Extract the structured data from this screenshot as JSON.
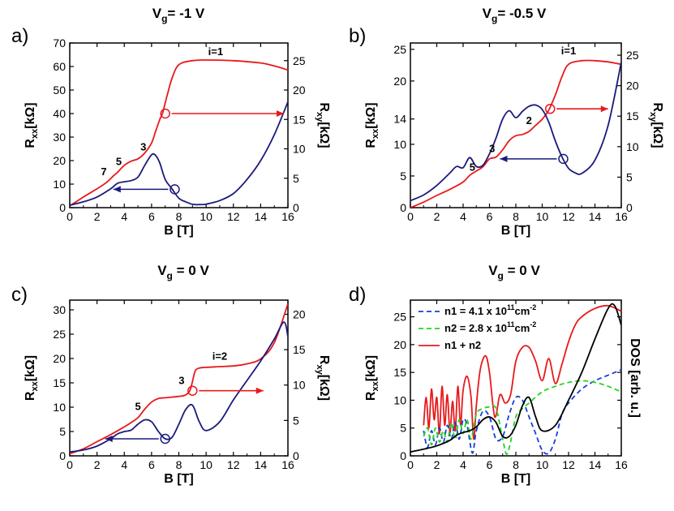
{
  "chart_data": [
    {
      "id": "a",
      "type": "line",
      "panel_label": "a)",
      "title_main": "V",
      "title_sub": "g",
      "title_rest": "= -1 V",
      "xlabel": "B [T]",
      "ylabel_left_main": "R",
      "ylabel_left_sub": "xx",
      "ylabel_left_unit": "[kΩ]",
      "ylabel_right_main": "R",
      "ylabel_right_sub": "xy",
      "ylabel_right_unit": "[kΩ]",
      "xlim": [
        0,
        16
      ],
      "ylim_left": [
        0,
        70
      ],
      "ylim_right": [
        0,
        28
      ],
      "xticks": [
        0,
        2,
        4,
        6,
        8,
        10,
        12,
        14,
        16
      ],
      "yticks_left": [
        0,
        10,
        20,
        30,
        40,
        50,
        60,
        70
      ],
      "yticks_right": [
        0,
        5,
        10,
        15,
        20,
        25
      ],
      "series": [
        {
          "axis": "right",
          "color": "#e8191b",
          "x": [
            0,
            1,
            2,
            2.7,
            3.2,
            3.5,
            4,
            4.5,
            5,
            5.5,
            6,
            6.3,
            6.6,
            6.8,
            7,
            7.2,
            7.5,
            8,
            9,
            10,
            12,
            14,
            15,
            16
          ],
          "y": [
            0.3,
            1.8,
            3.2,
            4.3,
            5.4,
            6.0,
            7.2,
            7.9,
            8.3,
            9.3,
            11,
            13,
            15,
            16,
            17.8,
            19.6,
            22,
            24.3,
            25.0,
            25.1,
            25.0,
            24.6,
            24.1,
            23.4
          ]
        },
        {
          "axis": "left",
          "color": "#1a1a7c",
          "x": [
            0,
            1,
            2,
            3,
            3.5,
            4,
            4.5,
            5,
            5.5,
            6,
            6.3,
            6.6,
            7,
            7.5,
            8,
            8.5,
            9,
            9.5,
            10,
            11,
            12,
            13,
            14,
            15,
            16
          ],
          "y": [
            1,
            2.5,
            4.5,
            8,
            10.3,
            11,
            11.5,
            13,
            18,
            22.5,
            22.2,
            19,
            12,
            8,
            4,
            2.5,
            1.4,
            1.3,
            1.5,
            3,
            6,
            12,
            20,
            31,
            45
          ]
        }
      ],
      "annotations": [
        {
          "text": "i=1",
          "x": 10.7,
          "y": 25.4,
          "axis": "right"
        },
        {
          "text": "3",
          "x": 5.4,
          "y": 9.2,
          "axis": "right"
        },
        {
          "text": "5",
          "x": 3.6,
          "y": 6.7,
          "axis": "right"
        },
        {
          "text": "7",
          "x": 2.5,
          "y": 5.0,
          "axis": "right"
        }
      ],
      "markers": [
        {
          "x": 7.0,
          "y": 16.0,
          "axis": "right",
          "color": "#e8191b",
          "dir": "right",
          "x2": 15.7
        },
        {
          "x": 7.7,
          "y": 7.8,
          "axis": "left",
          "color": "#1a1a7c",
          "dir": "left",
          "x2": 3.2
        }
      ]
    },
    {
      "id": "b",
      "type": "line",
      "panel_label": "b)",
      "title_main": "V",
      "title_sub": "g",
      "title_rest": "= -0.5 V",
      "xlabel": "B [T]",
      "ylabel_left_main": "R",
      "ylabel_left_sub": "xx",
      "ylabel_left_unit": "[kΩ]",
      "ylabel_right_main": "R",
      "ylabel_right_sub": "xy",
      "ylabel_right_unit": "[kΩ]",
      "xlim": [
        0,
        16
      ],
      "ylim_left": [
        0,
        26
      ],
      "ylim_right": [
        0,
        27
      ],
      "xticks": [
        0,
        2,
        4,
        6,
        8,
        10,
        12,
        14,
        16
      ],
      "yticks_left": [
        0,
        5,
        10,
        14,
        20,
        25
      ],
      "yticks_right": [
        0,
        5,
        10,
        15,
        20,
        25
      ],
      "series": [
        {
          "axis": "right",
          "color": "#e8191b",
          "x": [
            0,
            1,
            2,
            3,
            4,
            4.5,
            5,
            5.5,
            6,
            6.5,
            7,
            7.5,
            8,
            8.5,
            9,
            9.5,
            10,
            10.5,
            11,
            11.5,
            12,
            13,
            14,
            15,
            16
          ],
          "y": [
            0,
            0.9,
            2.0,
            3.0,
            4.2,
            5.3,
            6.0,
            6.7,
            8.0,
            8.3,
            9.5,
            11.0,
            11.8,
            12.0,
            12.5,
            13.5,
            14.5,
            16.0,
            18.5,
            21.5,
            23.5,
            24.1,
            24.1,
            23.9,
            23.5
          ]
        },
        {
          "axis": "left",
          "color": "#1a1a7c",
          "x": [
            0,
            1,
            2,
            3,
            3.5,
            4,
            4.5,
            5,
            5.5,
            6,
            6.5,
            7,
            7.5,
            8,
            8.5,
            9,
            9.5,
            10,
            10.5,
            11,
            11.5,
            12,
            12.5,
            13,
            14,
            15,
            16
          ],
          "y": [
            1.1,
            2.0,
            3.5,
            5.5,
            6.5,
            6.3,
            7.9,
            6.5,
            6.7,
            8.5,
            11,
            14,
            15.3,
            14.2,
            15.2,
            16.0,
            16.2,
            15.5,
            13.5,
            10.5,
            8.0,
            6.2,
            5.5,
            5.4,
            7.5,
            13,
            23
          ]
        }
      ],
      "annotations": [
        {
          "text": "i=1",
          "x": 12.0,
          "y": 24.6,
          "axis": "right"
        },
        {
          "text": "2",
          "x": 9.0,
          "y": 13.2,
          "axis": "right"
        },
        {
          "text": "3",
          "x": 6.2,
          "y": 8.6,
          "axis": "right"
        },
        {
          "text": "5",
          "x": 4.7,
          "y": 5.5,
          "axis": "right"
        }
      ],
      "markers": [
        {
          "x": 10.6,
          "y": 16.2,
          "axis": "right",
          "color": "#e8191b",
          "dir": "right",
          "x2": 15.0
        },
        {
          "x": 11.6,
          "y": 7.7,
          "axis": "left",
          "color": "#1a1a7c",
          "dir": "left",
          "x2": 6.8
        }
      ]
    },
    {
      "id": "c",
      "type": "line",
      "panel_label": "c)",
      "title_main": "V",
      "title_sub": "g",
      "title_rest": " = 0 V",
      "xlabel": "B [T]",
      "ylabel_left_main": "R",
      "ylabel_left_sub": "xx",
      "ylabel_left_unit": "[kΩ]",
      "ylabel_right_main": "R",
      "ylabel_right_sub": "xy",
      "ylabel_right_unit": "[kΩ]",
      "xlim": [
        0,
        16
      ],
      "ylim_left": [
        0,
        32
      ],
      "ylim_right": [
        0,
        22
      ],
      "xticks": [
        0,
        2,
        4,
        6,
        8,
        10,
        12,
        14,
        16
      ],
      "yticks_left": [
        0,
        5,
        10,
        15,
        20,
        25,
        30
      ],
      "yticks_right": [
        0,
        5,
        10,
        15,
        20
      ],
      "series": [
        {
          "axis": "right",
          "color": "#e8191b",
          "x": [
            0,
            1,
            2,
            3,
            4,
            4.5,
            5,
            5.5,
            6,
            6.5,
            7,
            7.5,
            8,
            8.5,
            8.8,
            9,
            9.2,
            9.5,
            10,
            11,
            12,
            13,
            14,
            15,
            16
          ],
          "y": [
            0.3,
            1.0,
            2.0,
            3.0,
            4.1,
            4.7,
            5.4,
            6.6,
            7.6,
            8.1,
            8.2,
            8.3,
            8.4,
            8.6,
            9.2,
            10.5,
            12,
            12.4,
            12.5,
            12.6,
            12.7,
            13.0,
            13.7,
            16.0,
            21.5
          ]
        },
        {
          "axis": "left",
          "color": "#1a1a7c",
          "x": [
            0,
            1,
            2,
            3,
            3.5,
            4,
            4.5,
            5,
            5.5,
            6,
            6.5,
            7,
            7.5,
            8,
            8.5,
            9,
            9.5,
            10,
            11,
            12,
            13,
            14,
            15,
            15.7,
            16
          ],
          "y": [
            0.8,
            1.2,
            2.0,
            3.5,
            4.5,
            5.0,
            5.3,
            6.5,
            7.4,
            7.0,
            5.0,
            3.5,
            3.8,
            6.5,
            9.5,
            10.4,
            7.0,
            5.2,
            7.0,
            11.5,
            15.5,
            19.5,
            24,
            27.5,
            24.5
          ]
        }
      ],
      "annotations": [
        {
          "text": "i=2",
          "x": 11.0,
          "y": 13.1,
          "axis": "right"
        },
        {
          "text": "3",
          "x": 8.2,
          "y": 9.7,
          "axis": "right"
        },
        {
          "text": "5",
          "x": 5.0,
          "y": 6.0,
          "axis": "right"
        }
      ],
      "markers": [
        {
          "x": 9.0,
          "y": 9.2,
          "axis": "right",
          "color": "#e8191b",
          "dir": "right",
          "x2": 14.2
        },
        {
          "x": 7.0,
          "y": 3.5,
          "axis": "left",
          "color": "#1a1a7c",
          "dir": "left",
          "x2": 2.6
        }
      ]
    },
    {
      "id": "d",
      "type": "line",
      "panel_label": "d)",
      "title_main": "V",
      "title_sub": "g",
      "title_rest": " = 0 V",
      "xlabel": "B [T]",
      "ylabel_left_main": "R",
      "ylabel_left_sub": "xx",
      "ylabel_left_unit": "[kΩ]",
      "ylabel_right_text": "DOS [arb. u.]",
      "xlim": [
        0,
        16
      ],
      "ylim_left": [
        0,
        28
      ],
      "xticks": [
        0,
        2,
        4,
        6,
        8,
        10,
        12,
        14,
        16
      ],
      "yticks_left": [
        0,
        5,
        10,
        15,
        20,
        25
      ],
      "legend": [
        {
          "label_pre": "n1 = 4.1 x 10",
          "sup": "11",
          "label_mid": "cm",
          "sup2": "-2",
          "color": "#1a3be0",
          "dash": "6,4"
        },
        {
          "label_pre": "n2 = 2.8 x 10",
          "sup": "11",
          "label_mid": "cm",
          "sup2": "-2",
          "color": "#22d422",
          "dash": "6,4"
        },
        {
          "label_pre": "n1 + n2",
          "sup": "",
          "label_mid": "",
          "sup2": "",
          "color": "#e8191b",
          "dash": ""
        }
      ],
      "series": [
        {
          "name": "n1 + n2",
          "axis": "left",
          "color": "#e8191b",
          "dash": "",
          "x": [
            1.0,
            1.2,
            1.4,
            1.6,
            1.8,
            2.0,
            2.2,
            2.4,
            2.6,
            2.8,
            3.0,
            3.2,
            3.4,
            3.6,
            3.8,
            4.0,
            4.3,
            4.6,
            4.8,
            5.0,
            5.3,
            5.7,
            6.0,
            6.4,
            6.8,
            7.2,
            7.6,
            8.0,
            8.5,
            9.0,
            9.5,
            10.0,
            10.5,
            11.0,
            11.5,
            12.0,
            12.5,
            13.0,
            14.0,
            15.0,
            16.0
          ],
          "y": [
            5.5,
            10.5,
            5.0,
            12.0,
            6.5,
            10.5,
            4.0,
            12.5,
            5.5,
            11.0,
            4.2,
            9.8,
            4.5,
            12.5,
            5.5,
            11.8,
            14.3,
            10.5,
            3.0,
            9.0,
            15.5,
            18.0,
            15.0,
            7.0,
            11.0,
            9.5,
            11.0,
            17.0,
            19.5,
            19.5,
            17.0,
            13.5,
            17.5,
            13.0,
            16.5,
            20.5,
            23.5,
            25.0,
            26.5,
            27.0,
            26.0
          ]
        },
        {
          "name": "n1 = 4.1 x 10^11 cm^-2",
          "axis": "left",
          "color": "#1a3be0",
          "dash": "6,4",
          "x": [
            1.0,
            1.3,
            1.6,
            1.9,
            2.2,
            2.5,
            2.8,
            3.1,
            3.4,
            3.7,
            4.0,
            4.3,
            4.7,
            5.0,
            5.5,
            6.0,
            6.5,
            7.0,
            7.5,
            8.0,
            8.5,
            9.0,
            9.5,
            10.0,
            10.5,
            11.0,
            11.5,
            12.0,
            13.0,
            14.0,
            15.0,
            16.0
          ],
          "y": [
            4.5,
            1.5,
            4.5,
            2.0,
            5.0,
            2.5,
            5.5,
            3.0,
            6.0,
            3.0,
            6.5,
            5.5,
            0.5,
            4.5,
            8.0,
            7.0,
            3.0,
            3.5,
            7.5,
            10.5,
            10.0,
            7.0,
            4.0,
            1.0,
            0.5,
            3.0,
            7.5,
            9.5,
            12.0,
            13.5,
            14.5,
            15.5
          ]
        },
        {
          "name": "n2 = 2.8 x 10^11 cm^-2",
          "axis": "left",
          "color": "#22d422",
          "dash": "6,4",
          "x": [
            1.0,
            1.3,
            1.6,
            1.9,
            2.2,
            2.5,
            2.8,
            3.1,
            3.4,
            3.7,
            4.0,
            4.3,
            4.6,
            5.0,
            5.5,
            6.0,
            6.5,
            7.0,
            7.3,
            7.6,
            8.0,
            8.5,
            9.0,
            10.0,
            11.0,
            12.0,
            13.0,
            14.0,
            15.0,
            16.0
          ],
          "y": [
            3.5,
            5.0,
            2.0,
            5.0,
            2.5,
            4.5,
            2.5,
            6.0,
            3.0,
            6.5,
            4.0,
            6.5,
            3.0,
            7.5,
            8.5,
            8.8,
            8.5,
            3.0,
            0.3,
            2.5,
            7.0,
            8.5,
            9.5,
            11.5,
            12.5,
            13.2,
            13.5,
            13.2,
            12.5,
            11.5
          ]
        },
        {
          "name": "black",
          "axis": "left",
          "color": "#000000",
          "dash": "",
          "x": [
            0,
            1,
            2,
            3,
            3.5,
            4,
            4.5,
            5,
            5.5,
            6,
            6.5,
            7,
            7.5,
            8,
            8.5,
            9,
            9.5,
            10,
            11,
            12,
            13,
            14,
            15,
            15.5,
            16
          ],
          "y": [
            0.7,
            1.2,
            1.8,
            2.8,
            3.7,
            4.2,
            4.5,
            5.2,
            6.5,
            7.0,
            6.0,
            3.5,
            3.5,
            5.5,
            9.0,
            10.5,
            7.0,
            4.5,
            5.5,
            10.0,
            15.0,
            21.0,
            26.5,
            27.0,
            23.5
          ]
        }
      ],
      "annotations": [],
      "markers": []
    }
  ]
}
